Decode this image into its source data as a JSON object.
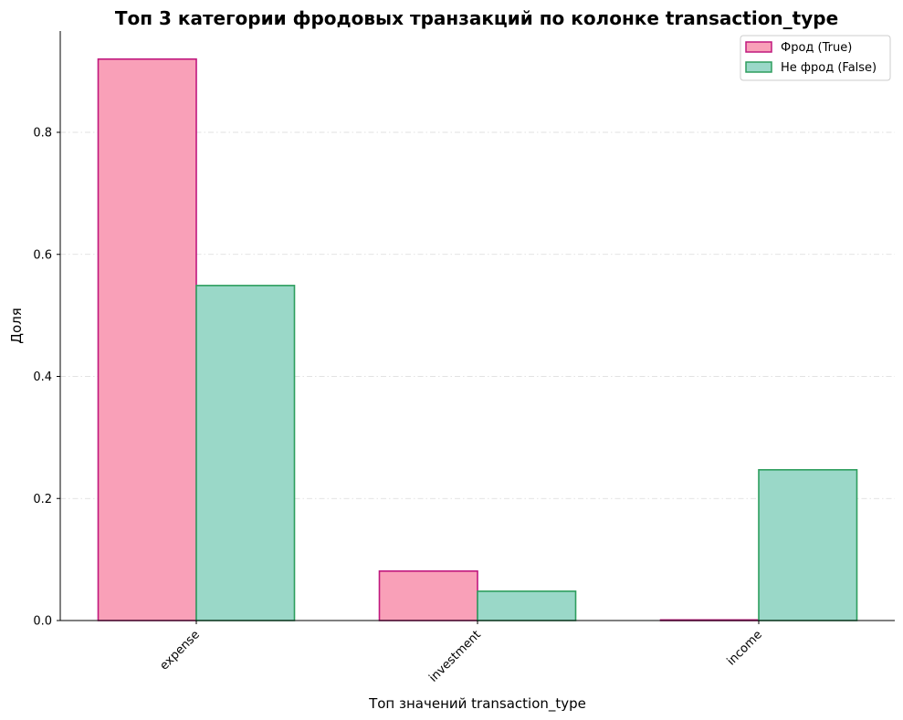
{
  "chart_data": {
    "type": "bar",
    "title": "Топ 3 категории фродовых транзакций по колонке transaction_type",
    "xlabel": "Топ значений transaction_type",
    "ylabel": "Доля",
    "categories": [
      "expense",
      "investment",
      "income"
    ],
    "series": [
      {
        "name": "Фрод (True)",
        "values": [
          0.92,
          0.081,
          0.001
        ],
        "fill": "#f9a0b8",
        "stroke": "#c0187e"
      },
      {
        "name": "Не фрод (False)",
        "values": [
          0.549,
          0.048,
          0.247
        ],
        "fill": "#9ad8c8",
        "stroke": "#2e9e5e"
      }
    ],
    "ylim": [
      0,
      0.966
    ],
    "yticks": [
      0.0,
      0.2,
      0.4,
      0.6,
      0.8
    ],
    "ytick_labels": [
      "0.0",
      "0.2",
      "0.4",
      "0.6",
      "0.8"
    ],
    "grid": "horizontal dashed",
    "legend_position": "top-right",
    "xtick_rotation": "45 degrees"
  }
}
